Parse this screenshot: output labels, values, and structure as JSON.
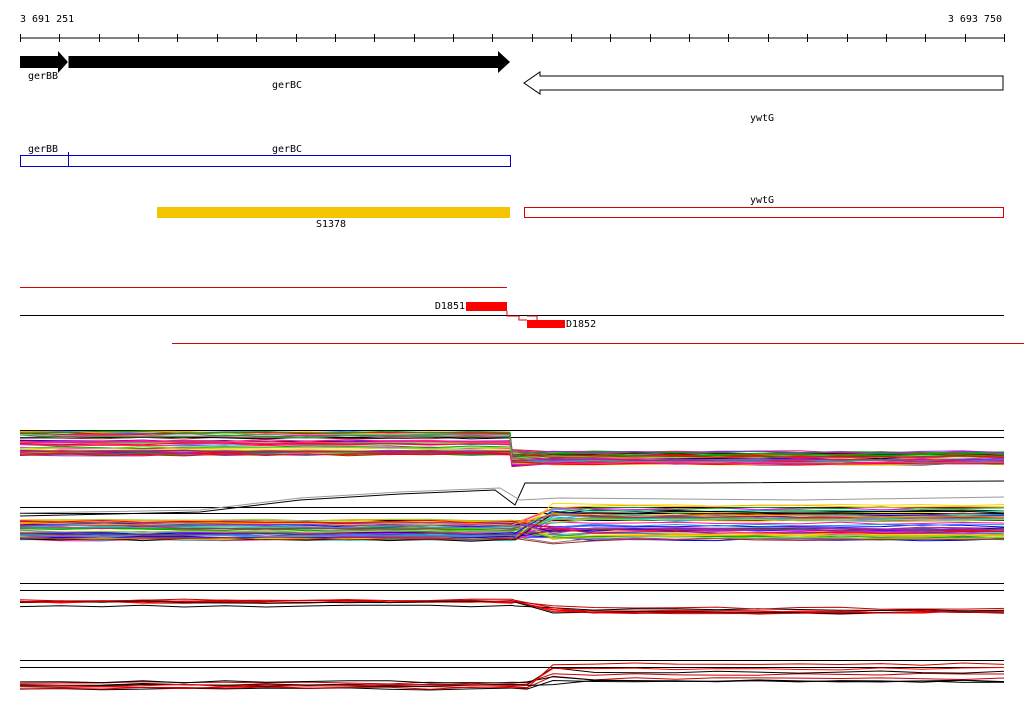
{
  "ruler": {
    "start": "3 691 251",
    "end": "3 693 750"
  },
  "gene_track": {
    "labels": [
      "gerBB",
      "gerBC",
      "ywtG"
    ]
  },
  "cds_track": {
    "labels": [
      "gerBB",
      "gerBC",
      "ywtG"
    ]
  },
  "feature_track": {
    "label": "S1378"
  },
  "probe_track": {
    "labels": [
      "D1851",
      "D1852"
    ]
  }
}
